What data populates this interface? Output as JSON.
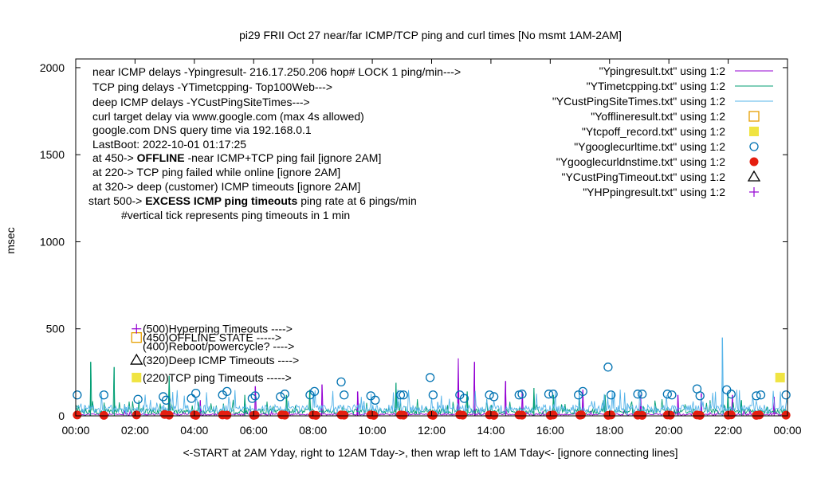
{
  "chart_data": {
    "type": "scatter",
    "title": "pi29 FRII Oct 27  near/far ICMP/TCP ping and curl times [No msmt 1AM-2AM]",
    "xlabel": "<-START at 2AM Yday, right to 12AM Tday->, then wrap left to 1AM Tday<- [ignore connecting lines]",
    "ylabel": "msec",
    "xlim": [
      0,
      24
    ],
    "ylim": [
      0,
      2050
    ],
    "x_ticks": [
      "00:00",
      "02:00",
      "04:00",
      "06:00",
      "08:00",
      "10:00",
      "12:00",
      "14:00",
      "16:00",
      "18:00",
      "20:00",
      "22:00",
      "00:00"
    ],
    "y_ticks": [
      0,
      500,
      1000,
      1500,
      2000
    ],
    "grid": false,
    "legend_position": "top-right",
    "info_lines": [
      "near ICMP delays -Ypingresult- 216.17.250.206 hop# LOCK 1 ping/min--->",
      "TCP ping delays -YTimetcpping- Top100Web--->",
      "deep ICMP delays -YCustPingSiteTimes--->",
      "curl target delay via www.google.com (max 4s allowed)",
      "google.com DNS query time via 192.168.0.1",
      "LastBoot: 2022-10-01 01:17:25"
    ],
    "offline_note": {
      "prefix": "at 450->",
      "emphasis": "OFFLINE",
      "suffix": "-near ICMP+TCP ping fail [ignore 2AM]"
    },
    "tcp_fail_note": "at 220-> TCP ping failed while online [ignore 2AM]",
    "deep_fail_note": "at 320-> deep (customer) ICMP timeouts [ignore 2AM]",
    "excess_note": {
      "prefix": "start 500->",
      "emphasis": "EXCESS ICMP ping timeouts",
      "suffix": "ping rate at 6 pings/min"
    },
    "vertical_tick_note": "#vertical tick represents ping timeouts in 1 min",
    "marker_labels": [
      {
        "y": 500,
        "text": "(500)Hyperping Timeouts ---->"
      },
      {
        "y": 450,
        "text": "(450)OFFLINE STATE ----->"
      },
      {
        "y": 400,
        "text": "(400)Reboot/powercycle? ---->"
      },
      {
        "y": 320,
        "text": "(320)Deep ICMP Timeouts ---->"
      },
      {
        "y": 220,
        "text": "(220)TCP ping Timeouts ----->"
      }
    ],
    "series": [
      {
        "name": "\"Ypingresult.txt\" using 1:2",
        "style": "line",
        "color": "#9400d3",
        "baseline": 8,
        "spikes": [
          [
            3.15,
            130
          ],
          [
            4.2,
            90
          ],
          [
            6.05,
            170
          ],
          [
            8.3,
            180
          ],
          [
            9.5,
            140
          ],
          [
            12.9,
            330
          ],
          [
            13.45,
            310
          ],
          [
            14.5,
            200
          ],
          [
            15.05,
            140
          ],
          [
            17.1,
            150
          ],
          [
            19.05,
            120
          ],
          [
            20.3,
            120
          ],
          [
            21.1,
            130
          ],
          [
            22.15,
            120
          ],
          [
            23.55,
            110
          ]
        ]
      },
      {
        "name": "\"YTimetcpping.txt\" using 1:2",
        "style": "line",
        "color": "#009e73",
        "baseline": 25,
        "spikes": [
          [
            0.5,
            310
          ],
          [
            1.3,
            280
          ],
          [
            3.15,
            230
          ],
          [
            5.7,
            120
          ],
          [
            7.1,
            120
          ],
          [
            7.9,
            150
          ],
          [
            10.8,
            190
          ],
          [
            13.2,
            140
          ],
          [
            15.45,
            160
          ],
          [
            16.1,
            120
          ],
          [
            17.85,
            120
          ],
          [
            22.0,
            130
          ],
          [
            22.45,
            90
          ]
        ]
      },
      {
        "name": "\"YCustPingSiteTimes.txt\" using 1:2",
        "style": "line",
        "color": "#56b4e9",
        "baseline": 40,
        "spikes": [
          [
            0.3,
            60
          ],
          [
            1.7,
            50
          ],
          [
            2.3,
            60
          ],
          [
            5.2,
            80
          ],
          [
            9.7,
            60
          ],
          [
            12.2,
            80
          ],
          [
            18.6,
            70
          ],
          [
            21.8,
            450
          ]
        ]
      },
      {
        "name": "\"Yofflineresult.txt\" using 1:2",
        "style": "square-open",
        "color": "#e69f00",
        "points": [
          [
            2.05,
            450
          ]
        ]
      },
      {
        "name": "\"Ytcpoff_record.txt\" using 1:2",
        "style": "square-filled",
        "color": "#f0e442",
        "points": [
          [
            2.05,
            220
          ],
          [
            23.75,
            220
          ]
        ]
      },
      {
        "name": "\"Ygooglecurltime.txt\" using 1:2",
        "style": "circle-open",
        "color": "#0072b2",
        "points": [
          [
            0.05,
            120
          ],
          [
            0.95,
            120
          ],
          [
            2.1,
            95
          ],
          [
            2.95,
            110
          ],
          [
            3.05,
            90
          ],
          [
            3.9,
            100
          ],
          [
            4.05,
            130
          ],
          [
            4.95,
            120
          ],
          [
            5.1,
            140
          ],
          [
            5.95,
            100
          ],
          [
            6.05,
            115
          ],
          [
            6.9,
            110
          ],
          [
            7.05,
            125
          ],
          [
            7.9,
            120
          ],
          [
            8.05,
            140
          ],
          [
            8.95,
            195
          ],
          [
            9.05,
            120
          ],
          [
            9.95,
            115
          ],
          [
            10.1,
            90
          ],
          [
            10.95,
            120
          ],
          [
            11.05,
            120
          ],
          [
            11.95,
            220
          ],
          [
            12.05,
            120
          ],
          [
            12.95,
            120
          ],
          [
            13.1,
            100
          ],
          [
            13.95,
            120
          ],
          [
            14.1,
            110
          ],
          [
            14.95,
            120
          ],
          [
            15.05,
            125
          ],
          [
            15.95,
            125
          ],
          [
            16.1,
            125
          ],
          [
            16.95,
            120
          ],
          [
            17.1,
            140
          ],
          [
            17.95,
            280
          ],
          [
            18.05,
            120
          ],
          [
            18.95,
            125
          ],
          [
            19.1,
            125
          ],
          [
            19.95,
            125
          ],
          [
            20.1,
            120
          ],
          [
            20.95,
            155
          ],
          [
            21.05,
            115
          ],
          [
            21.95,
            150
          ],
          [
            22.1,
            125
          ],
          [
            22.95,
            115
          ],
          [
            23.1,
            120
          ],
          [
            23.95,
            120
          ]
        ]
      },
      {
        "name": "\"Ygooglecurldnstime.txt\" using 1:2",
        "style": "circle-filled",
        "color": "#e51e10",
        "points": [
          [
            0.05,
            5
          ],
          [
            0.95,
            3
          ],
          [
            2.05,
            5
          ],
          [
            3.0,
            8
          ],
          [
            3.15,
            4
          ],
          [
            4.0,
            6
          ],
          [
            4.05,
            3
          ],
          [
            4.95,
            5
          ],
          [
            5.1,
            4
          ],
          [
            6.0,
            3
          ],
          [
            6.05,
            5
          ],
          [
            6.95,
            6
          ],
          [
            7.05,
            4
          ],
          [
            8.0,
            5
          ],
          [
            8.1,
            3
          ],
          [
            8.95,
            5
          ],
          [
            9.05,
            4
          ],
          [
            9.95,
            6
          ],
          [
            10.05,
            3
          ],
          [
            10.95,
            5
          ],
          [
            11.05,
            4
          ],
          [
            12.0,
            5
          ],
          [
            12.05,
            3
          ],
          [
            12.95,
            6
          ],
          [
            13.05,
            4
          ],
          [
            13.95,
            5
          ],
          [
            14.1,
            3
          ],
          [
            14.95,
            5
          ],
          [
            15.05,
            4
          ],
          [
            16.0,
            3
          ],
          [
            16.1,
            5
          ],
          [
            17.0,
            4
          ],
          [
            17.05,
            6
          ],
          [
            17.95,
            3
          ],
          [
            18.05,
            5
          ],
          [
            18.95,
            4
          ],
          [
            19.1,
            3
          ],
          [
            19.95,
            5
          ],
          [
            20.05,
            4
          ],
          [
            20.95,
            5
          ],
          [
            21.05,
            3
          ],
          [
            22.0,
            4
          ],
          [
            22.1,
            6
          ],
          [
            22.95,
            3
          ],
          [
            23.05,
            5
          ],
          [
            23.95,
            4
          ]
        ]
      },
      {
        "name": "\"YCustPingTimeout.txt\" using 1:2",
        "style": "triangle-open",
        "color": "#000000",
        "points": [
          [
            2.05,
            320
          ]
        ]
      },
      {
        "name": "\"YHPpingresult.txt\" using 1:2",
        "style": "plus",
        "color": "#9400d3",
        "points": [
          [
            2.05,
            500
          ]
        ]
      }
    ]
  }
}
